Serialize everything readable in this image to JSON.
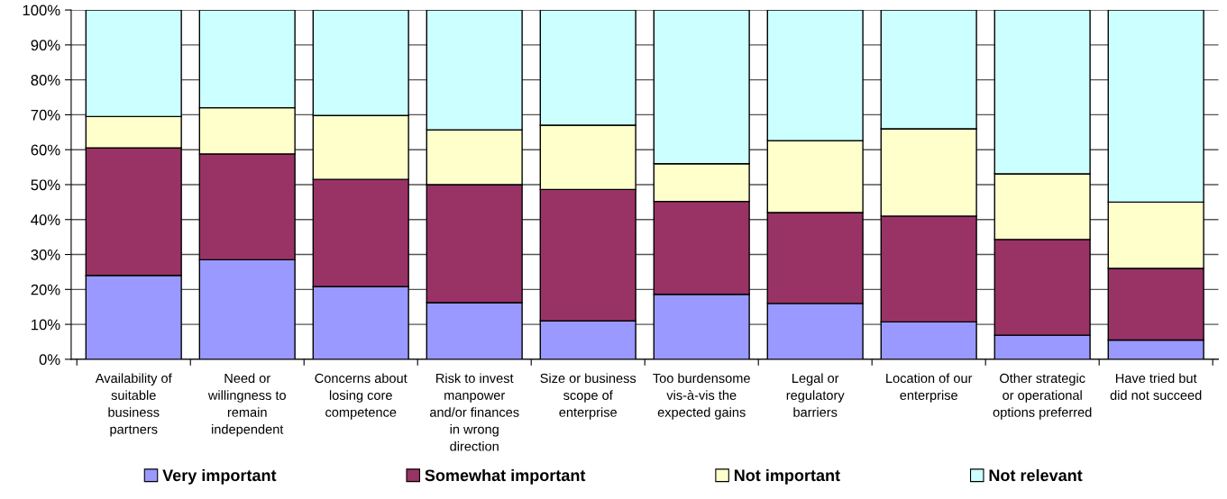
{
  "chart_data": {
    "type": "bar",
    "stacked": true,
    "categories": [
      "Availability of suitable business partners",
      "Need or willingness to remain independent",
      "Concerns about losing core competence",
      "Risk to invest manpower and/or finances in wrong direction",
      "Size or business scope of enterprise",
      "Too burdensome vis-à-vis the expected gains",
      "Legal or regulatory barriers",
      "Location of our enterprise",
      "Other strategic or operational options preferred",
      "Have tried but did not succeed"
    ],
    "series": [
      {
        "name": "Very important",
        "color": "#9999ff",
        "values": [
          24,
          28.5,
          20.8,
          16.2,
          11,
          18.6,
          16,
          10.7,
          6.9,
          5.5
        ]
      },
      {
        "name": "Somewhat important",
        "color": "#993366",
        "values": [
          36.5,
          30.3,
          30.7,
          33.8,
          37.6,
          26.6,
          26,
          30.3,
          27.4,
          20.5
        ]
      },
      {
        "name": "Not important",
        "color": "#ffffcc",
        "values": [
          9,
          13.2,
          18.3,
          15.7,
          18.4,
          10.8,
          20.6,
          25,
          18.8,
          19
        ]
      },
      {
        "name": "Not relevant",
        "color": "#ccffff",
        "values": [
          30.5,
          28,
          30.2,
          34.3,
          33,
          44,
          37.4,
          34,
          46.9,
          55
        ]
      }
    ],
    "ylim": [
      0,
      100
    ],
    "yticks": [
      {
        "value": 0,
        "label": "0%"
      },
      {
        "value": 10,
        "label": "10%"
      },
      {
        "value": 20,
        "label": "20%"
      },
      {
        "value": 30,
        "label": "30%"
      },
      {
        "value": 40,
        "label": "40%"
      },
      {
        "value": 50,
        "label": "50%"
      },
      {
        "value": 60,
        "label": "60%"
      },
      {
        "value": 70,
        "label": "70%"
      },
      {
        "value": 80,
        "label": "80%"
      },
      {
        "value": 90,
        "label": "90%"
      },
      {
        "value": 100,
        "label": "100%"
      }
    ],
    "grid": "y",
    "legend": "bottom"
  }
}
